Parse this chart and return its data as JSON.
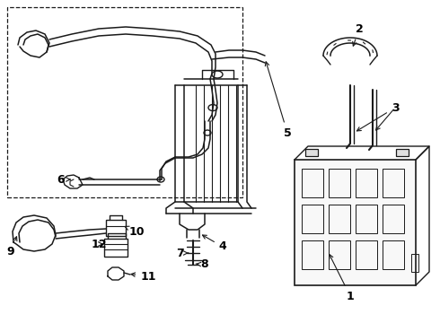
{
  "bg_color": "#ffffff",
  "lc": "#1a1a1a",
  "fig_w": 4.9,
  "fig_h": 3.6,
  "dpi": 100,
  "lw": 1.0,
  "lw2": 1.5
}
